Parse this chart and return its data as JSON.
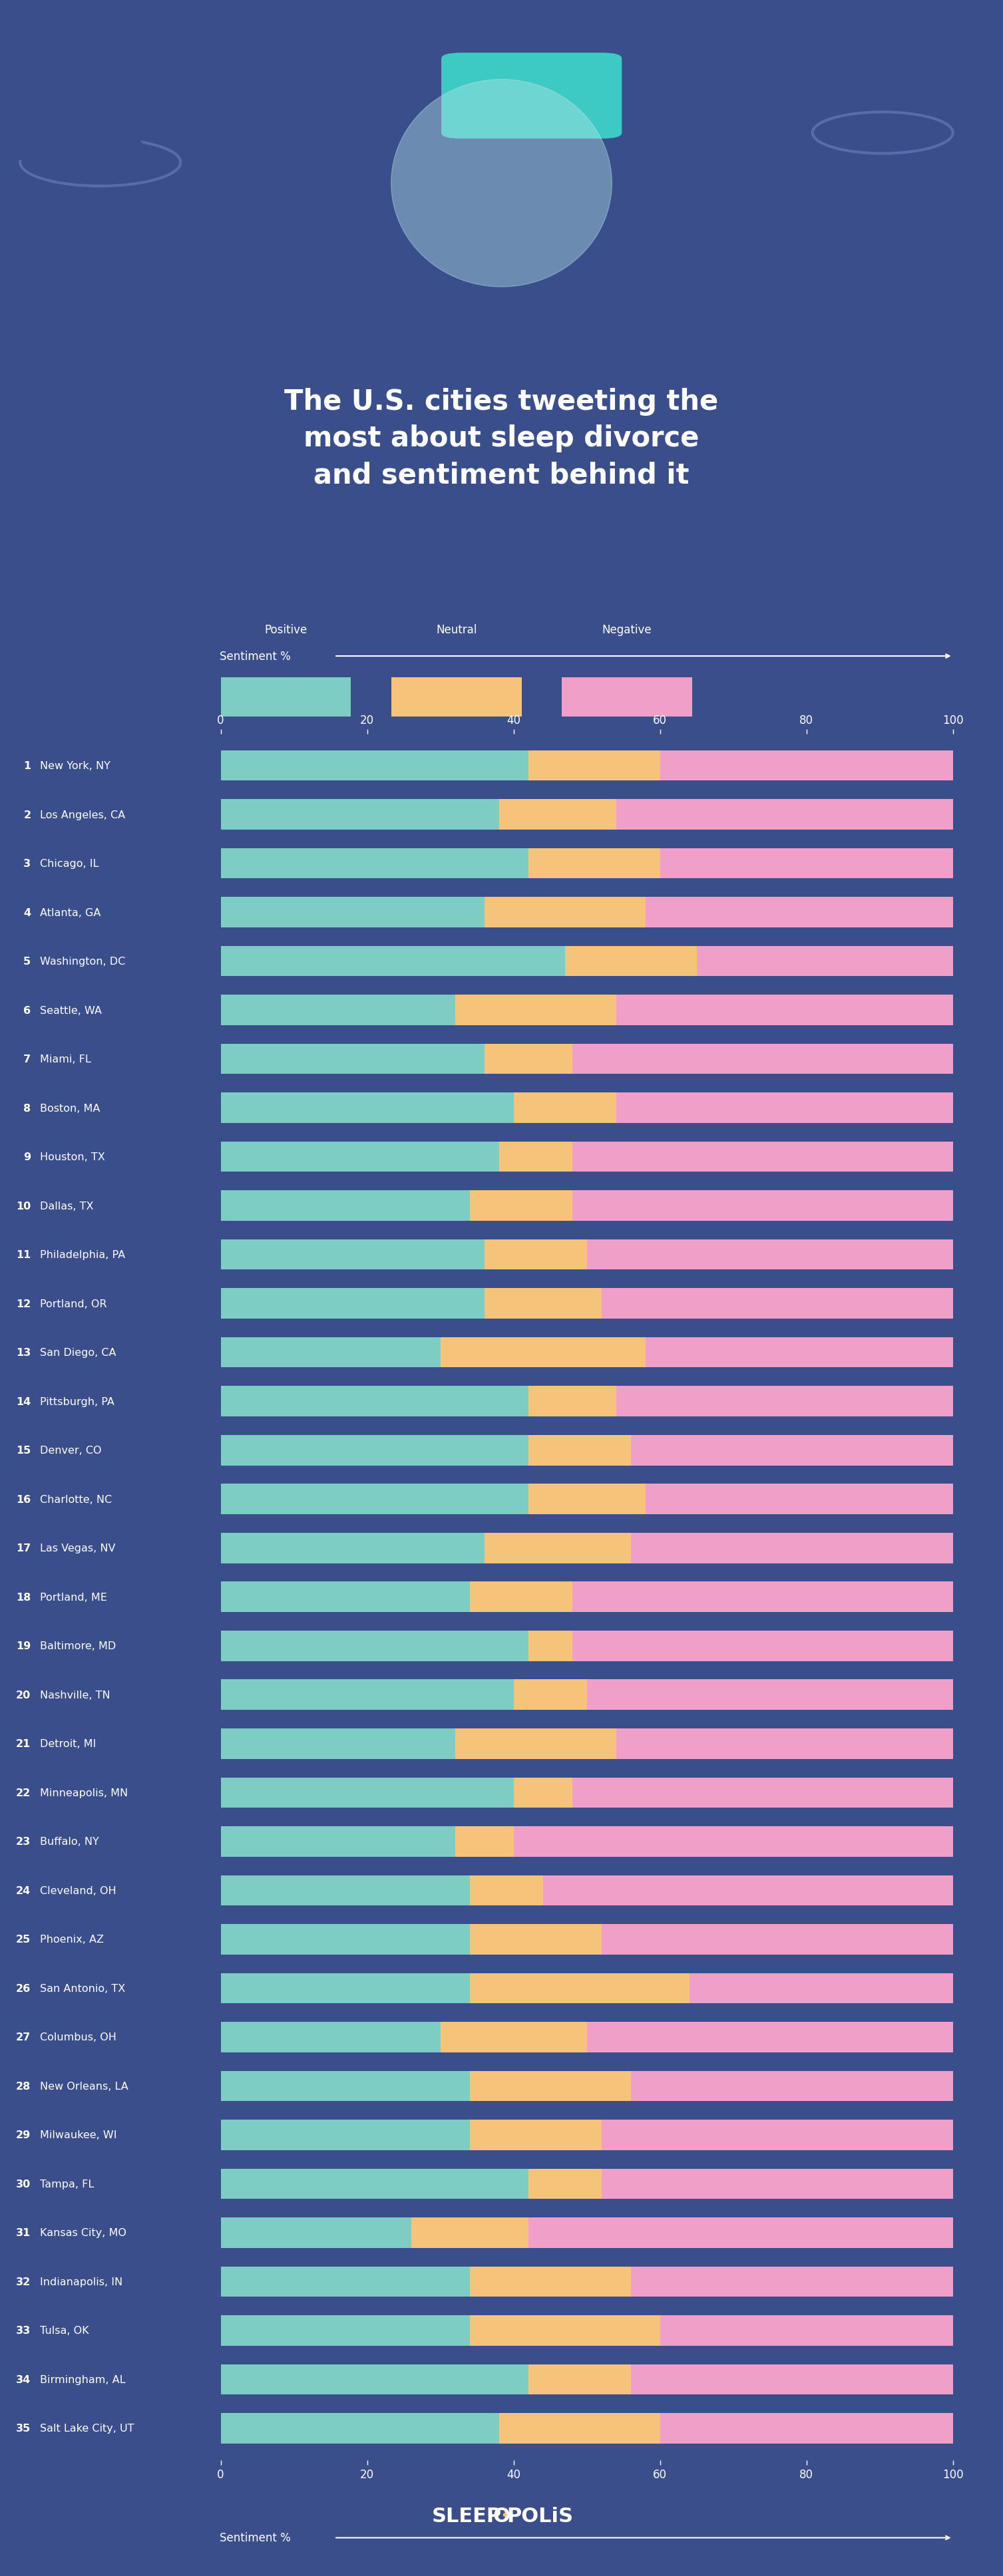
{
  "title": "The U.S. cities tweeting the\nmost about sleep divorce\nand sentiment behind it",
  "bg_color": "#3a4e8c",
  "positive_color": "#7ecdc4",
  "neutral_color": "#f5c47a",
  "negative_color": "#f0a0c8",
  "axis_label": "Sentiment %",
  "cities": [
    "New York, NY",
    "Los Angeles, CA",
    "Chicago, IL",
    "Atlanta, GA",
    "Washington, DC",
    "Seattle, WA",
    "Miami, FL",
    "Boston, MA",
    "Houston, TX",
    "Dallas, TX",
    "Philadelphia, PA",
    "Portland, OR",
    "San Diego, CA",
    "Pittsburgh, PA",
    "Denver, CO",
    "Charlotte, NC",
    "Las Vegas, NV",
    "Portland, ME",
    "Baltimore, MD",
    "Nashville, TN",
    "Detroit, MI",
    "Minneapolis, MN",
    "Buffalo, NY",
    "Cleveland, OH",
    "Phoenix, AZ",
    "San Antonio, TX",
    "Columbus, OH",
    "New Orleans, LA",
    "Milwaukee, WI",
    "Tampa, FL",
    "Kansas City, MO",
    "Indianapolis, IN",
    "Tulsa, OK",
    "Birmingham, AL",
    "Salt Lake City, UT"
  ],
  "positive": [
    42,
    38,
    42,
    36,
    47,
    32,
    36,
    40,
    38,
    34,
    36,
    36,
    30,
    42,
    42,
    42,
    36,
    34,
    42,
    40,
    32,
    40,
    32,
    34,
    34,
    34,
    30,
    34,
    34,
    42,
    26,
    34,
    34,
    42,
    38
  ],
  "neutral": [
    18,
    16,
    18,
    22,
    18,
    22,
    12,
    14,
    10,
    14,
    14,
    16,
    28,
    12,
    14,
    16,
    20,
    14,
    6,
    10,
    22,
    8,
    8,
    10,
    18,
    30,
    20,
    22,
    18,
    10,
    16,
    22,
    26,
    14,
    22
  ],
  "negative": [
    40,
    46,
    40,
    42,
    35,
    46,
    52,
    46,
    52,
    52,
    50,
    48,
    42,
    46,
    44,
    42,
    44,
    52,
    52,
    50,
    46,
    52,
    60,
    56,
    48,
    36,
    50,
    44,
    48,
    48,
    58,
    44,
    40,
    44,
    40
  ]
}
